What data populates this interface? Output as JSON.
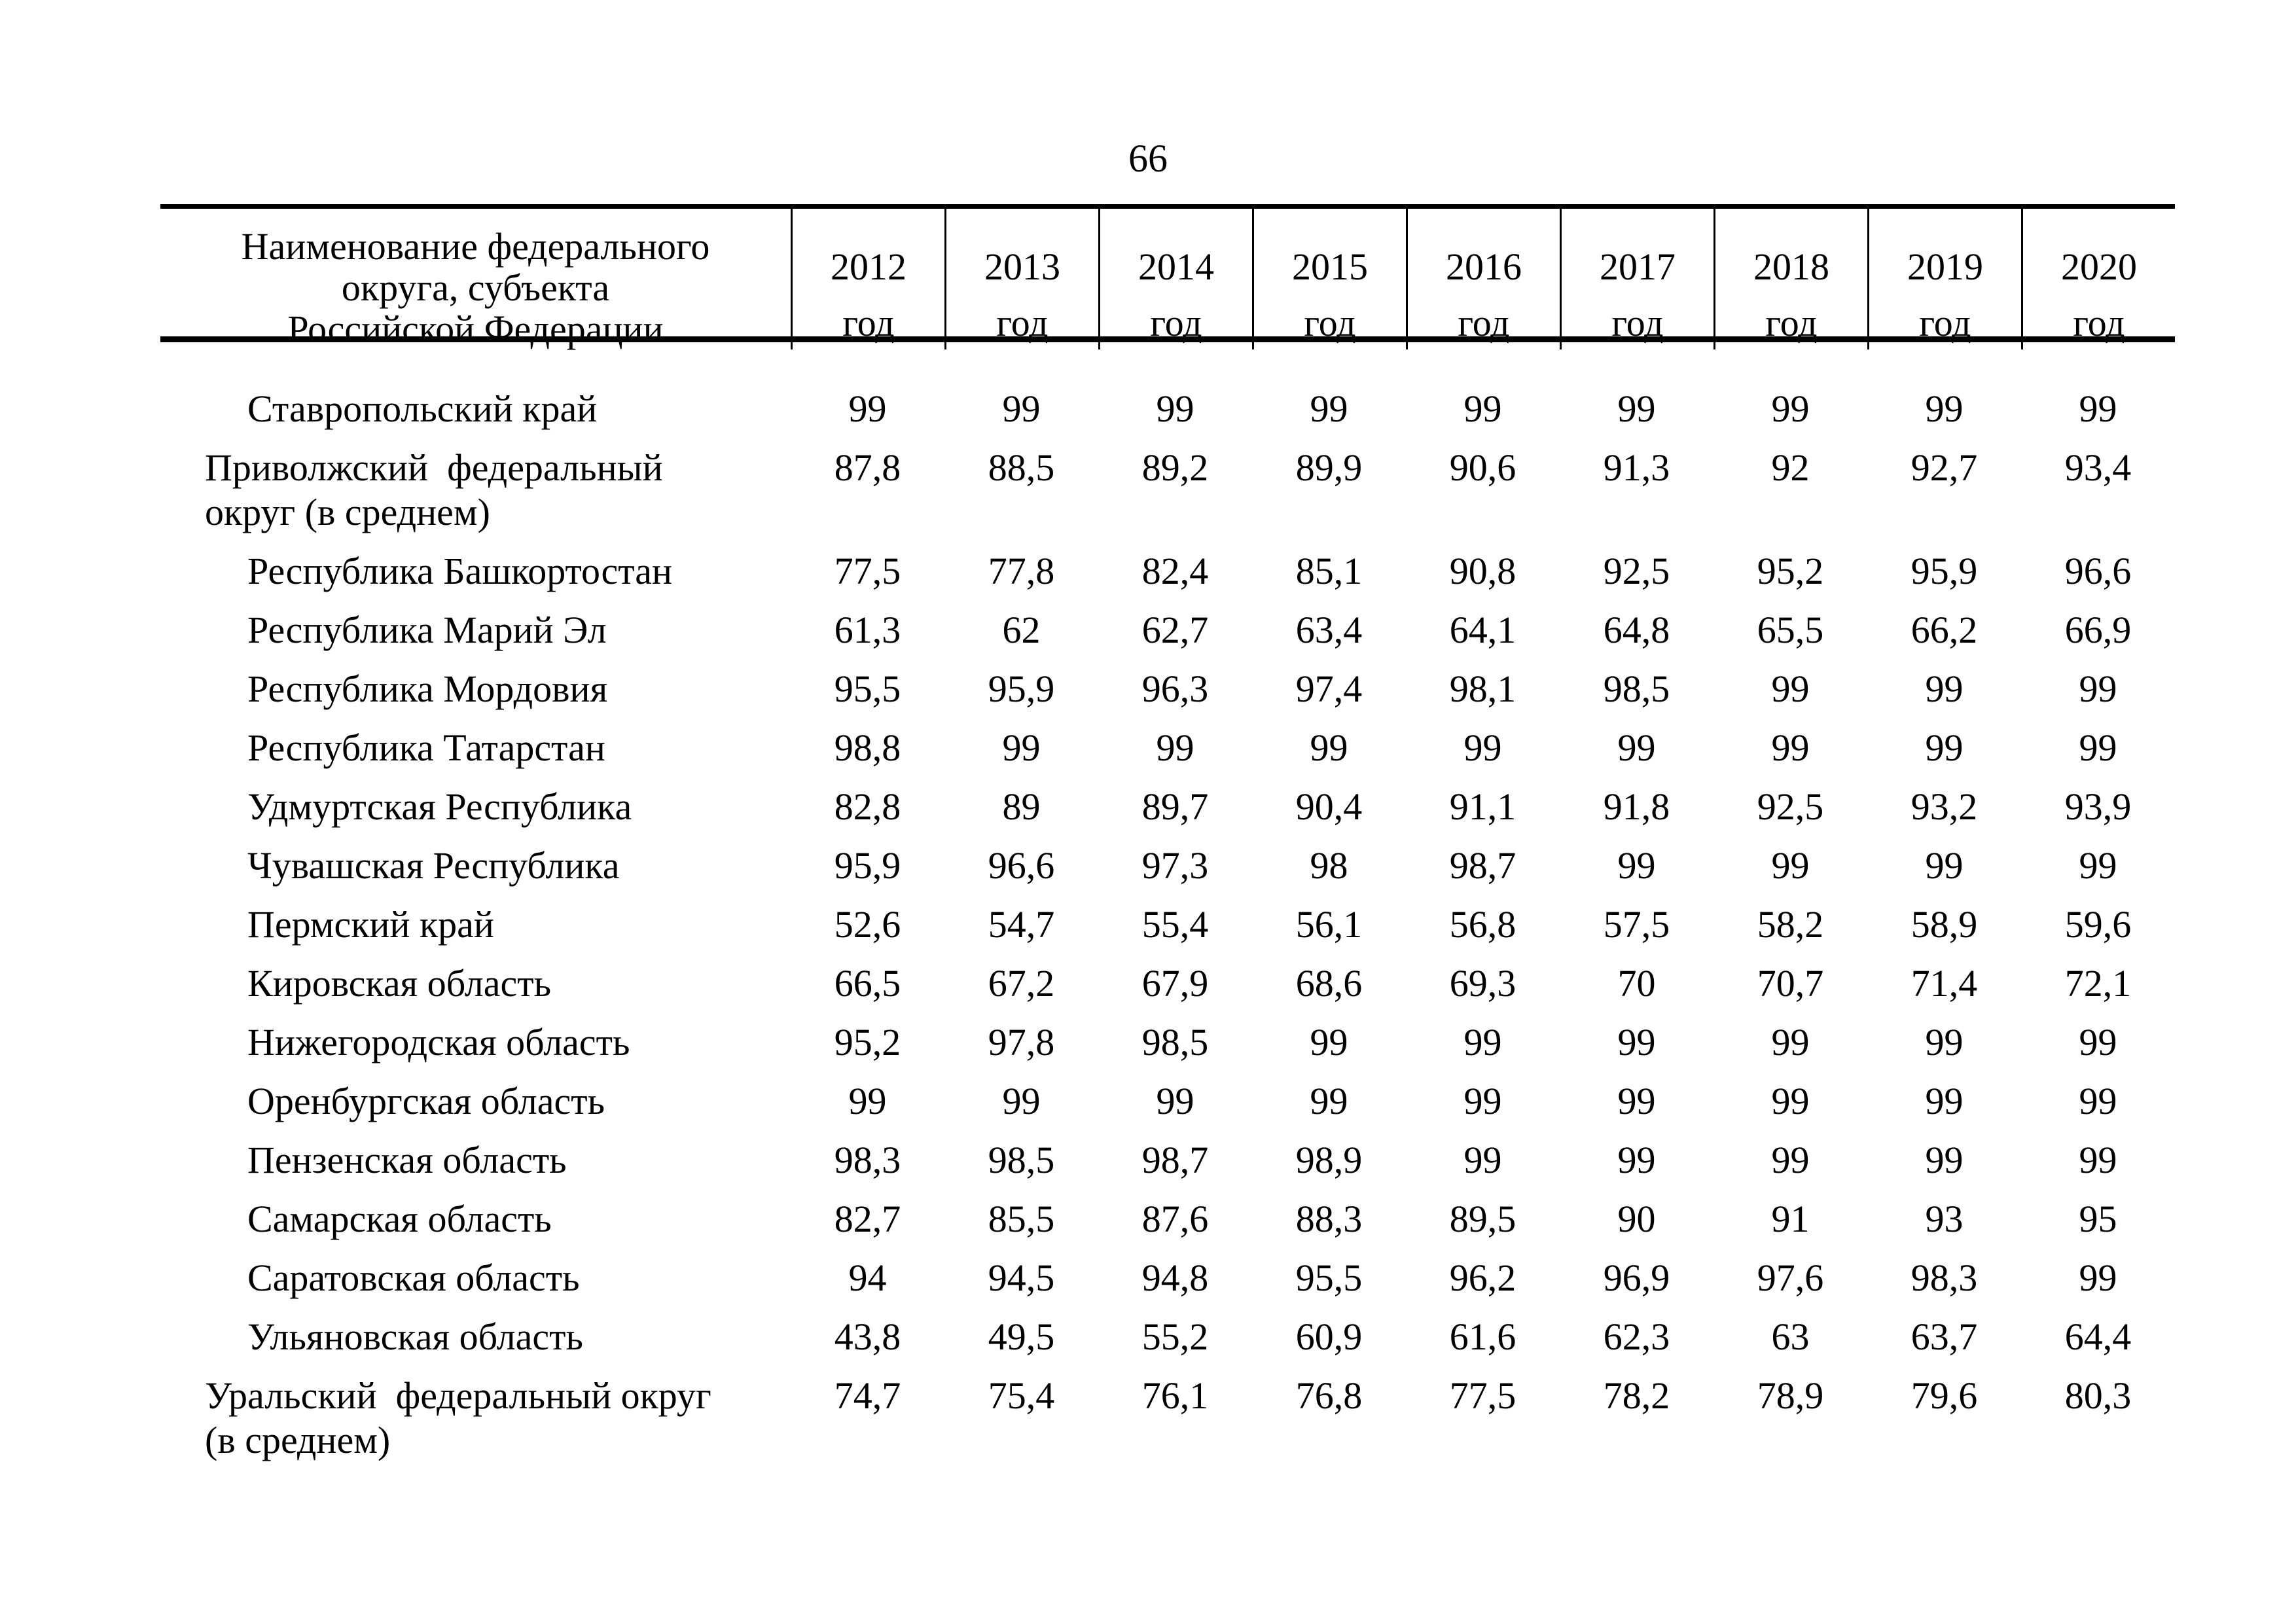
{
  "page": {
    "number": "66"
  },
  "colors": {
    "background": "#ffffff",
    "text": "#000000",
    "rule": "#000000"
  },
  "table": {
    "header": {
      "name_column_lines": [
        "Наименование федерального",
        "округа, субъекта",
        "Российской Федерации"
      ],
      "year_columns": [
        {
          "year": "2012",
          "unit": "год"
        },
        {
          "year": "2013",
          "unit": "год"
        },
        {
          "year": "2014",
          "unit": "год"
        },
        {
          "year": "2015",
          "unit": "год"
        },
        {
          "year": "2016",
          "unit": "год"
        },
        {
          "year": "2017",
          "unit": "год"
        },
        {
          "year": "2018",
          "unit": "год"
        },
        {
          "year": "2019",
          "unit": "год"
        },
        {
          "year": "2020",
          "unit": "год"
        }
      ]
    },
    "rows": [
      {
        "name": "Ставропольский край",
        "level": "subject",
        "name_lines": [
          "Ставропольский край"
        ],
        "values": [
          "99",
          "99",
          "99",
          "99",
          "99",
          "99",
          "99",
          "99",
          "99"
        ]
      },
      {
        "name": "Приволжский федеральный округ (в среднем)",
        "level": "district",
        "name_lines": [
          "Приволжский  федеральный",
          "округ (в среднем)"
        ],
        "values": [
          "87,8",
          "88,5",
          "89,2",
          "89,9",
          "90,6",
          "91,3",
          "92",
          "92,7",
          "93,4"
        ]
      },
      {
        "name": "Республика Башкортостан",
        "level": "subject",
        "name_lines": [
          "Республика Башкортостан"
        ],
        "values": [
          "77,5",
          "77,8",
          "82,4",
          "85,1",
          "90,8",
          "92,5",
          "95,2",
          "95,9",
          "96,6"
        ]
      },
      {
        "name": "Республика Марий Эл",
        "level": "subject",
        "name_lines": [
          "Республика Марий Эл"
        ],
        "values": [
          "61,3",
          "62",
          "62,7",
          "63,4",
          "64,1",
          "64,8",
          "65,5",
          "66,2",
          "66,9"
        ]
      },
      {
        "name": "Республика Мордовия",
        "level": "subject",
        "name_lines": [
          "Республика Мордовия"
        ],
        "values": [
          "95,5",
          "95,9",
          "96,3",
          "97,4",
          "98,1",
          "98,5",
          "99",
          "99",
          "99"
        ]
      },
      {
        "name": "Республика Татарстан",
        "level": "subject",
        "name_lines": [
          "Республика Татарстан"
        ],
        "values": [
          "98,8",
          "99",
          "99",
          "99",
          "99",
          "99",
          "99",
          "99",
          "99"
        ]
      },
      {
        "name": "Удмуртская Республика",
        "level": "subject",
        "name_lines": [
          "Удмуртская Республика"
        ],
        "values": [
          "82,8",
          "89",
          "89,7",
          "90,4",
          "91,1",
          "91,8",
          "92,5",
          "93,2",
          "93,9"
        ]
      },
      {
        "name": "Чувашская Республика",
        "level": "subject",
        "name_lines": [
          "Чувашская Республика"
        ],
        "values": [
          "95,9",
          "96,6",
          "97,3",
          "98",
          "98,7",
          "99",
          "99",
          "99",
          "99"
        ]
      },
      {
        "name": "Пермский край",
        "level": "subject",
        "name_lines": [
          "Пермский край"
        ],
        "values": [
          "52,6",
          "54,7",
          "55,4",
          "56,1",
          "56,8",
          "57,5",
          "58,2",
          "58,9",
          "59,6"
        ]
      },
      {
        "name": "Кировская область",
        "level": "subject",
        "name_lines": [
          "Кировская область"
        ],
        "values": [
          "66,5",
          "67,2",
          "67,9",
          "68,6",
          "69,3",
          "70",
          "70,7",
          "71,4",
          "72,1"
        ]
      },
      {
        "name": "Нижегородская область",
        "level": "subject",
        "name_lines": [
          "Нижегородская область"
        ],
        "values": [
          "95,2",
          "97,8",
          "98,5",
          "99",
          "99",
          "99",
          "99",
          "99",
          "99"
        ]
      },
      {
        "name": "Оренбургская область",
        "level": "subject",
        "name_lines": [
          "Оренбургская область"
        ],
        "values": [
          "99",
          "99",
          "99",
          "99",
          "99",
          "99",
          "99",
          "99",
          "99"
        ]
      },
      {
        "name": "Пензенская область",
        "level": "subject",
        "name_lines": [
          "Пензенская область"
        ],
        "values": [
          "98,3",
          "98,5",
          "98,7",
          "98,9",
          "99",
          "99",
          "99",
          "99",
          "99"
        ]
      },
      {
        "name": "Самарская область",
        "level": "subject",
        "name_lines": [
          "Самарская область"
        ],
        "values": [
          "82,7",
          "85,5",
          "87,6",
          "88,3",
          "89,5",
          "90",
          "91",
          "93",
          "95"
        ]
      },
      {
        "name": "Саратовская область",
        "level": "subject",
        "name_lines": [
          "Саратовская область"
        ],
        "values": [
          "94",
          "94,5",
          "94,8",
          "95,5",
          "96,2",
          "96,9",
          "97,6",
          "98,3",
          "99"
        ]
      },
      {
        "name": "Ульяновская область",
        "level": "subject",
        "name_lines": [
          "Ульяновская область"
        ],
        "values": [
          "43,8",
          "49,5",
          "55,2",
          "60,9",
          "61,6",
          "62,3",
          "63",
          "63,7",
          "64,4"
        ]
      },
      {
        "name": "Уральский федеральный округ (в среднем)",
        "level": "district",
        "name_lines": [
          "Уральский  федеральный округ",
          "(в среднем)"
        ],
        "values": [
          "74,7",
          "75,4",
          "76,1",
          "76,8",
          "77,5",
          "78,2",
          "78,9",
          "79,6",
          "80,3"
        ]
      }
    ]
  }
}
